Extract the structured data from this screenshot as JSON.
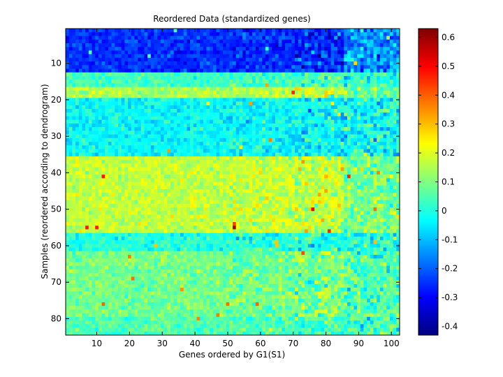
{
  "chart_data": {
    "type": "heatmap",
    "title": "Reordered Data (standardized genes)",
    "xlabel": "Genes ordered by G1(S1)",
    "ylabel": "Samples (reordered according to dendrogram)",
    "n_cols": 102,
    "n_rows": 84,
    "xlim": [
      0.5,
      102.5
    ],
    "ylim": [
      0.5,
      84.5
    ],
    "x_ticks": [
      10,
      20,
      30,
      40,
      50,
      60,
      70,
      80,
      90,
      100
    ],
    "y_ticks": [
      10,
      20,
      30,
      40,
      50,
      60,
      70,
      80
    ],
    "colorbar": {
      "min": -0.43,
      "max": 0.63,
      "ticks": [
        -0.4,
        -0.3,
        -0.2,
        -0.1,
        0,
        0.1,
        0.2,
        0.3,
        0.4,
        0.5,
        0.6
      ],
      "tick_labels": [
        "-0.4",
        "-0.3",
        "-0.2",
        "-0.1",
        "0",
        "0.1",
        "0.2",
        "0.3",
        "0.4",
        "0.5",
        "0.6"
      ],
      "colormap": "jet"
    },
    "row_bands": [
      {
        "rows": [
          1,
          12
        ],
        "mean": -0.25
      },
      {
        "rows": [
          13,
          16
        ],
        "mean": 0.03
      },
      {
        "rows": [
          17,
          19
        ],
        "mean": 0.15
      },
      {
        "rows": [
          20,
          35
        ],
        "mean": -0.03
      },
      {
        "rows": [
          36,
          56
        ],
        "mean": 0.17
      },
      {
        "rows": [
          57,
          61
        ],
        "mean": 0.0
      },
      {
        "rows": [
          62,
          79
        ],
        "mean": 0.09
      },
      {
        "rows": [
          80,
          84
        ],
        "mean": 0.05
      }
    ],
    "grid": false
  }
}
